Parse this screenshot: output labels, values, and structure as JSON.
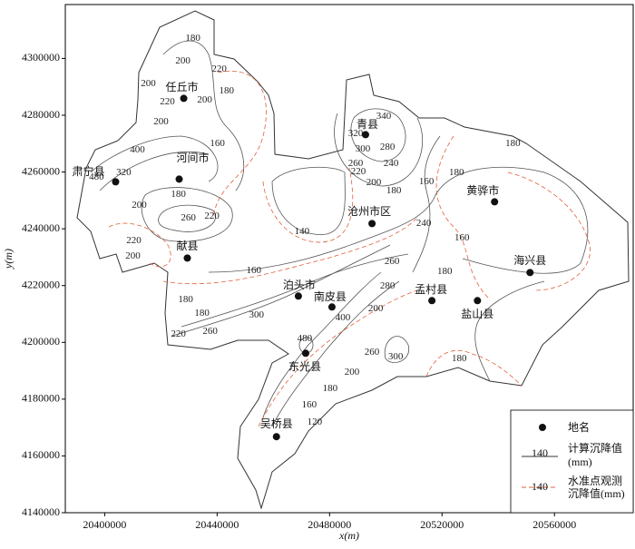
{
  "chart_data": {
    "type": "contour-map",
    "xlabel": "x(m)",
    "ylabel": "y(m)",
    "xlim": [
      20386000,
      20588000
    ],
    "ylim": [
      4140000,
      4319000
    ],
    "xticks": [
      20400000,
      20440000,
      20480000,
      20520000,
      20560000
    ],
    "yticks": [
      4140000,
      4160000,
      4180000,
      4200000,
      4220000,
      4240000,
      4260000,
      4280000,
      4300000
    ],
    "places": {
      "names": [
        "任丘市",
        "河间市",
        "肃宁县",
        "献县",
        "青县",
        "沧州市区",
        "黄骅市",
        "海兴县",
        "泊头市",
        "南皮县",
        "孟村县",
        "盐山县",
        "东光县",
        "吴桥县"
      ],
      "x": [
        20428130,
        20426500,
        20403900,
        20429400,
        20492800,
        20495100,
        20538700,
        20551300,
        20468900,
        20480850,
        20516400,
        20532600,
        20471500,
        20461100
      ],
      "y": [
        4285940,
        4257500,
        4256550,
        4229700,
        4273160,
        4241850,
        4249500,
        4224600,
        4216300,
        4212470,
        4214700,
        4214700,
        4196170,
        4166780
      ],
      "color": "#111111"
    },
    "contour_labels": {
      "values": [
        180,
        200,
        220,
        220,
        200,
        180,
        200,
        200,
        160,
        180,
        260,
        220,
        200,
        220,
        200,
        480,
        320,
        400,
        140,
        160,
        340,
        320,
        300,
        280,
        260,
        240,
        220,
        200,
        180,
        160,
        180,
        180,
        240,
        160,
        260,
        180,
        180,
        180,
        220,
        260,
        300,
        280,
        200,
        400,
        480,
        260,
        300,
        200,
        180,
        180,
        160,
        120
      ],
      "x": [
        20431370,
        20427810,
        20440750,
        20422310,
        20435570,
        20443340,
        20415520,
        20420050,
        20440100,
        20426200,
        20429760,
        20438160,
        20412290,
        20410350,
        20410030,
        20397090,
        20406790,
        20411640,
        20470180,
        20453040,
        20499280,
        20489260,
        20491840,
        20500580,
        20489260,
        20501870,
        20490230,
        20495730,
        20502840,
        20514480,
        20525150,
        20545200,
        20513510,
        20527100,
        20502200,
        20520950,
        20428780,
        20434600,
        20426200,
        20437510,
        20454000,
        20500580,
        20496380,
        20484730,
        20471150,
        20495080,
        20503490,
        20487960,
        20526120,
        20480200,
        20472760,
        20474700
      ],
      "y": [
        4307030,
        4299040,
        4296170,
        4284660,
        4285300,
        4288500,
        4291050,
        4277630,
        4269970,
        4252080,
        4243770,
        4244410,
        4248240,
        4235780,
        4230350,
        4258150,
        4259740,
        4267730,
        4238980,
        4225240,
        4279550,
        4273480,
        4268050,
        4268690,
        4262940,
        4262940,
        4260060,
        4256230,
        4253350,
        4256550,
        4259740,
        4269970,
        4241850,
        4236740,
        4228430,
        4224920,
        4215010,
        4210220,
        4202870,
        4203830,
        4209580,
        4219810,
        4211820,
        4208630,
        4201280,
        4196490,
        4194890,
        4189460,
        4194250,
        4183710,
        4177960,
        4171890
      ]
    },
    "legend": {
      "place": "地名",
      "computed": [
        "计算沉降值",
        "(mm)"
      ],
      "observed": [
        "水准点观测",
        "沉降值(mm)"
      ],
      "sample_values": [
        140,
        140
      ],
      "computed_color": "#333333",
      "observed_color": "#e0603a"
    }
  }
}
